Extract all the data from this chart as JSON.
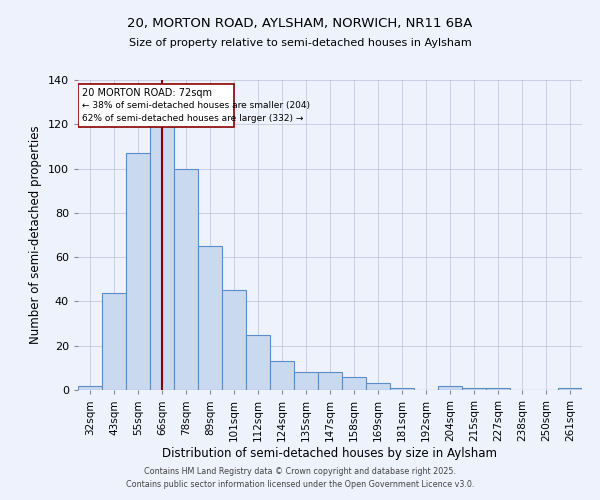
{
  "title_line1": "20, MORTON ROAD, AYLSHAM, NORWICH, NR11 6BA",
  "title_line2": "Size of property relative to semi-detached houses in Aylsham",
  "xlabel": "Distribution of semi-detached houses by size in Aylsham",
  "ylabel": "Number of semi-detached properties",
  "categories": [
    "32sqm",
    "43sqm",
    "55sqm",
    "66sqm",
    "78sqm",
    "89sqm",
    "101sqm",
    "112sqm",
    "124sqm",
    "135sqm",
    "147sqm",
    "158sqm",
    "169sqm",
    "181sqm",
    "192sqm",
    "204sqm",
    "215sqm",
    "227sqm",
    "238sqm",
    "250sqm",
    "261sqm"
  ],
  "values": [
    2,
    44,
    107,
    120,
    100,
    65,
    45,
    25,
    13,
    8,
    8,
    6,
    3,
    1,
    0,
    2,
    1,
    1,
    0,
    0,
    1
  ],
  "bar_color": "#c9d9f0",
  "bar_edge_color": "#5b8ec7",
  "property_label": "20 MORTON ROAD: 72sqm",
  "pct_smaller": 38,
  "count_smaller": 204,
  "pct_larger": 62,
  "count_larger": 332,
  "vline_color": "#8b0000",
  "vline_x_index": 3,
  "annotation_box_color": "#ffffff",
  "annotation_box_edge": "#8b0000",
  "footer_line1": "Contains HM Land Registry data © Crown copyright and database right 2025.",
  "footer_line2": "Contains public sector information licensed under the Open Government Licence v3.0.",
  "background_color": "#eef2fc",
  "ylim": [
    0,
    140
  ],
  "yticks": [
    0,
    20,
    40,
    60,
    80,
    100,
    120,
    140
  ]
}
